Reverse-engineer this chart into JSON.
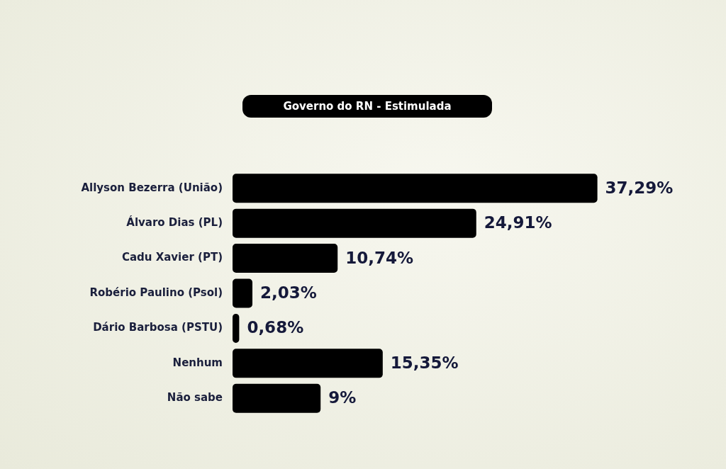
{
  "chart_data": {
    "type": "bar",
    "orientation": "horizontal",
    "title": "Governo do RN - Estimulada",
    "categories": [
      "Allyson Bezerra (União)",
      "Álvaro Dias (PL)",
      "Cadu Xavier (PT)",
      "Robério Paulino (Psol)",
      "Dário Barbosa (PSTU)",
      "Nenhum",
      "Não sabe"
    ],
    "values": [
      37.29,
      24.91,
      10.74,
      2.03,
      0.68,
      15.35,
      9
    ],
    "value_labels": [
      "37,29%",
      "24,91%",
      "10,74%",
      "2,03%",
      "0,68%",
      "15,35%",
      "9%"
    ],
    "color": "#000000",
    "grid": false,
    "legend": false,
    "tick_labels": "y"
  }
}
